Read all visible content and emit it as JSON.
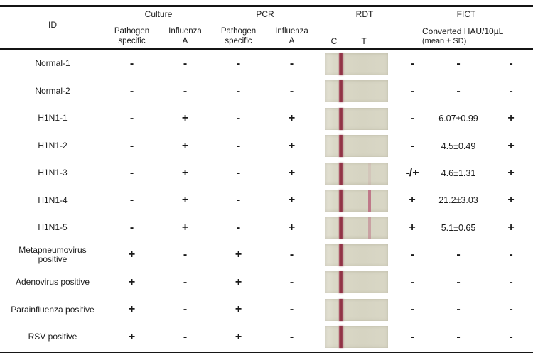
{
  "table": {
    "header": {
      "id": "ID",
      "culture": "Culture",
      "pcr": "PCR",
      "rdt": "RDT",
      "fict": "FICT",
      "pathogen_specific_line1": "Pathogen",
      "pathogen_specific_line2": "specific",
      "influenza_line1": "Influenza",
      "influenza_line2": "A",
      "c": "C",
      "t": "T",
      "fict_sub_line1": "Converted HAU/10µL",
      "fict_sub_line2": "(mean ± SD)"
    },
    "rows": [
      {
        "id": "Normal-1",
        "culture_pathogen": "-",
        "culture_influenza_a": "-",
        "pcr_pathogen": "-",
        "pcr_influenza_a": "-",
        "rdt_strip": {
          "c_line": true,
          "t_line": "none"
        },
        "fict_result": "-",
        "fict_hau": "-",
        "fict_final": "-"
      },
      {
        "id": "Normal-2",
        "culture_pathogen": "-",
        "culture_influenza_a": "-",
        "pcr_pathogen": "-",
        "pcr_influenza_a": "-",
        "rdt_strip": {
          "c_line": true,
          "t_line": "none"
        },
        "fict_result": "-",
        "fict_hau": "-",
        "fict_final": "-"
      },
      {
        "id": "H1N1-1",
        "culture_pathogen": "-",
        "culture_influenza_a": "+",
        "pcr_pathogen": "-",
        "pcr_influenza_a": "+",
        "rdt_strip": {
          "c_line": true,
          "t_line": "none"
        },
        "fict_result": "-",
        "fict_hau": "6.07±0.99",
        "fict_final": "+"
      },
      {
        "id": "H1N1-2",
        "culture_pathogen": "-",
        "culture_influenza_a": "+",
        "pcr_pathogen": "-",
        "pcr_influenza_a": "+",
        "rdt_strip": {
          "c_line": true,
          "t_line": "none"
        },
        "fict_result": "-",
        "fict_hau": "4.5±0.49",
        "fict_final": "+"
      },
      {
        "id": "H1N1-3",
        "culture_pathogen": "-",
        "culture_influenza_a": "+",
        "pcr_pathogen": "-",
        "pcr_influenza_a": "+",
        "rdt_strip": {
          "c_line": true,
          "t_line": "trace"
        },
        "fict_result": "-/+",
        "fict_hau": "4.6±1.31",
        "fict_final": "+"
      },
      {
        "id": "H1N1-4",
        "culture_pathogen": "-",
        "culture_influenza_a": "+",
        "pcr_pathogen": "-",
        "pcr_influenza_a": "+",
        "rdt_strip": {
          "c_line": true,
          "t_line": "strong"
        },
        "fict_result": "+",
        "fict_hau": "21.2±3.03",
        "fict_final": "+"
      },
      {
        "id": "H1N1-5",
        "culture_pathogen": "-",
        "culture_influenza_a": "+",
        "pcr_pathogen": "-",
        "pcr_influenza_a": "+",
        "rdt_strip": {
          "c_line": true,
          "t_line": "faint"
        },
        "fict_result": "+",
        "fict_hau": "5.1±0.65",
        "fict_final": "+"
      },
      {
        "id": "Metapneumovirus positive",
        "culture_pathogen": "+",
        "culture_influenza_a": "-",
        "pcr_pathogen": "+",
        "pcr_influenza_a": "-",
        "rdt_strip": {
          "c_line": true,
          "t_line": "none"
        },
        "fict_result": "-",
        "fict_hau": "-",
        "fict_final": "-"
      },
      {
        "id": "Adenovirus positive",
        "culture_pathogen": "+",
        "culture_influenza_a": "-",
        "pcr_pathogen": "+",
        "pcr_influenza_a": "-",
        "rdt_strip": {
          "c_line": true,
          "t_line": "none"
        },
        "fict_result": "-",
        "fict_hau": "-",
        "fict_final": "-"
      },
      {
        "id": "Parainfluenza positive",
        "culture_pathogen": "+",
        "culture_influenza_a": "-",
        "pcr_pathogen": "+",
        "pcr_influenza_a": "-",
        "rdt_strip": {
          "c_line": true,
          "t_line": "none"
        },
        "fict_result": "-",
        "fict_hau": "-",
        "fict_final": "-"
      },
      {
        "id": "RSV positive",
        "culture_pathogen": "+",
        "culture_influenza_a": "-",
        "pcr_pathogen": "+",
        "pcr_influenza_a": "-",
        "rdt_strip": {
          "c_line": true,
          "t_line": "none"
        },
        "fict_result": "-",
        "fict_hau": "-",
        "fict_final": "-"
      }
    ]
  }
}
